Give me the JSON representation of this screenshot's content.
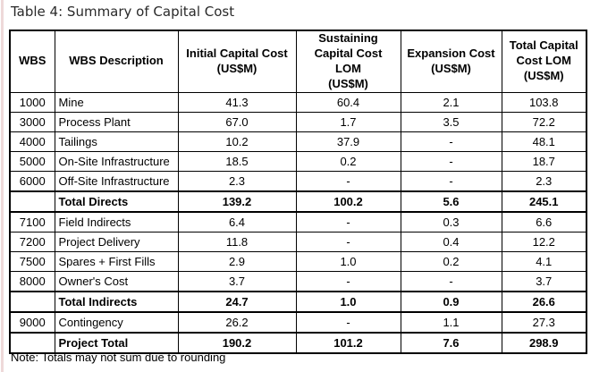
{
  "page": {
    "title": "Table 4: Summary of Capital Cost",
    "note": "Note: Totals may not sum due to rounding"
  },
  "table": {
    "headers": [
      [
        "WBS"
      ],
      [
        "WBS Description"
      ],
      [
        "Initial Capital Cost",
        "(US$M)"
      ],
      [
        "Sustaining",
        "Capital Cost LOM",
        "(US$M)"
      ],
      [
        "Expansion Cost",
        "(US$M)"
      ],
      [
        "Total Capital",
        "Cost LOM",
        "(US$M)"
      ]
    ],
    "rows": [
      {
        "wbs": "1000",
        "desc": "Mine",
        "initial": "41.3",
        "sustaining": "60.4",
        "expansion": "2.1",
        "total": "103.8",
        "bold": false
      },
      {
        "wbs": "3000",
        "desc": "Process Plant",
        "initial": "67.0",
        "sustaining": "1.7",
        "expansion": "3.5",
        "total": "72.2",
        "bold": false
      },
      {
        "wbs": "4000",
        "desc": "Tailings",
        "initial": "10.2",
        "sustaining": "37.9",
        "expansion": "-",
        "total": "48.1",
        "bold": false
      },
      {
        "wbs": "5000",
        "desc": "On-Site Infrastructure",
        "initial": "18.5",
        "sustaining": "0.2",
        "expansion": "-",
        "total": "18.7",
        "bold": false
      },
      {
        "wbs": "6000",
        "desc": "Off-Site Infrastructure",
        "initial": "2.3",
        "sustaining": "-",
        "expansion": "-",
        "total": "2.3",
        "bold": false
      },
      {
        "wbs": "",
        "desc": "Total Directs",
        "initial": "139.2",
        "sustaining": "100.2",
        "expansion": "5.6",
        "total": "245.1",
        "bold": true
      },
      {
        "wbs": "7100",
        "desc": "Field Indirects",
        "initial": "6.4",
        "sustaining": "-",
        "expansion": "0.3",
        "total": "6.6",
        "bold": false
      },
      {
        "wbs": "7200",
        "desc": "Project Delivery",
        "initial": "11.8",
        "sustaining": "-",
        "expansion": "0.4",
        "total": "12.2",
        "bold": false
      },
      {
        "wbs": "7500",
        "desc": "Spares + First Fills",
        "initial": "2.9",
        "sustaining": "1.0",
        "expansion": "0.2",
        "total": "4.1",
        "bold": false
      },
      {
        "wbs": "8000",
        "desc": "Owner's Cost",
        "initial": "3.7",
        "sustaining": "-",
        "expansion": "-",
        "total": "3.7",
        "bold": false
      },
      {
        "wbs": "",
        "desc": "Total Indirects",
        "initial": "24.7",
        "sustaining": "1.0",
        "expansion": "0.9",
        "total": "26.6",
        "bold": true
      },
      {
        "wbs": "9000",
        "desc": "Contingency",
        "initial": "26.2",
        "sustaining": "-",
        "expansion": "1.1",
        "total": "27.3",
        "bold": false
      },
      {
        "wbs": "",
        "desc": "Project Total",
        "initial": "190.2",
        "sustaining": "101.2",
        "expansion": "7.6",
        "total": "298.9",
        "bold": true
      }
    ]
  }
}
